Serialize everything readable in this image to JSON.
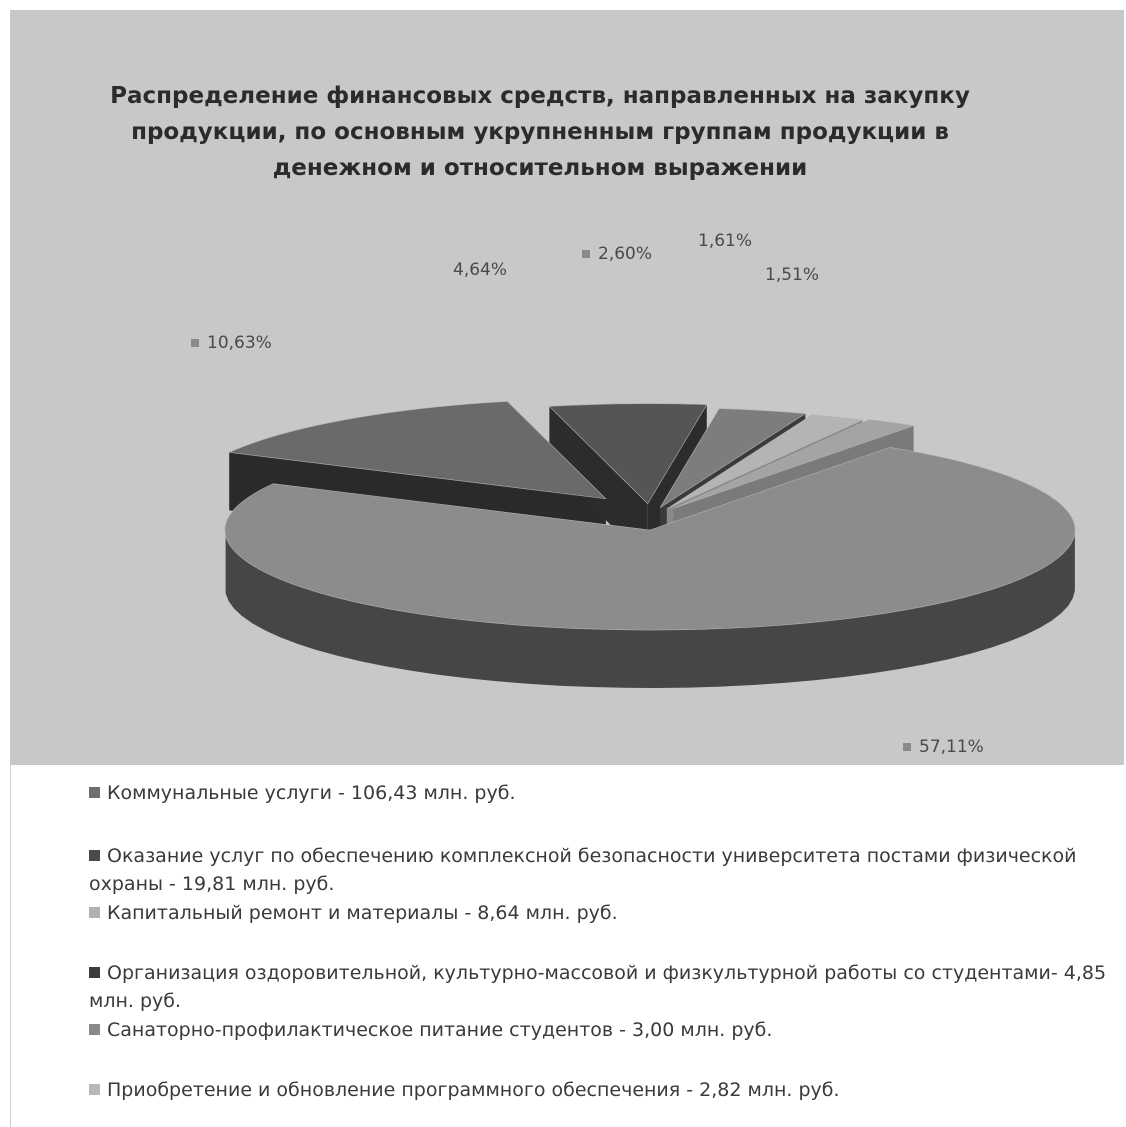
{
  "chart_data": {
    "type": "pie",
    "title": "Распределение финансовых средств, направленных на закупку продукции, по основным укрупненным группам продукции  в денежном и относительном выражении",
    "three_d": true,
    "exploded": true,
    "slices": [
      {
        "legend": "Коммунальные услуги - 106,43 млн. руб.",
        "value_mln_rub": 106.43,
        "percent_label": "57,11%",
        "color": "#8c8c8c",
        "side_color": "#464646"
      },
      {
        "legend": "Оказание услуг по обеспечению комплексной безопасности университета постами физической охраны - 19,81 млн. руб.",
        "value_mln_rub": 19.81,
        "percent_label": "10,63%",
        "color": "#6a6a6a",
        "side_color": "#2a2a2a"
      },
      {
        "legend": "Капитальный ремонт и материалы - 8,64 млн. руб.",
        "value_mln_rub": 8.64,
        "percent_label": "4,64%",
        "color": "#555555",
        "side_color": "#2c2c2c"
      },
      {
        "legend": "Организация оздоровительной, культурно-массовой и физкультурной работы со студентами- 4,85 млн. руб.",
        "value_mln_rub": 4.85,
        "percent_label": "2,60%",
        "color": "#7d7d7d",
        "side_color": "#3a3a3a"
      },
      {
        "legend": "Санаторно-профилактическое  питание студентов - 3,00 млн. руб.",
        "value_mln_rub": 3.0,
        "percent_label": "1,61%",
        "color": "#b4b4b4",
        "side_color": "#8a8a8a"
      },
      {
        "legend": "Приобретение и обновление программного обеспечения - 2,82 млн. руб.",
        "value_mln_rub": 2.82,
        "percent_label": "1,51%",
        "color": "#a4a4a4",
        "side_color": "#7a7a7a"
      }
    ],
    "legend_position": "bottom"
  },
  "colors": {
    "plot_background": "#c8c8c8",
    "page_background": "#ffffff",
    "label_text": "#4a4a4a"
  }
}
